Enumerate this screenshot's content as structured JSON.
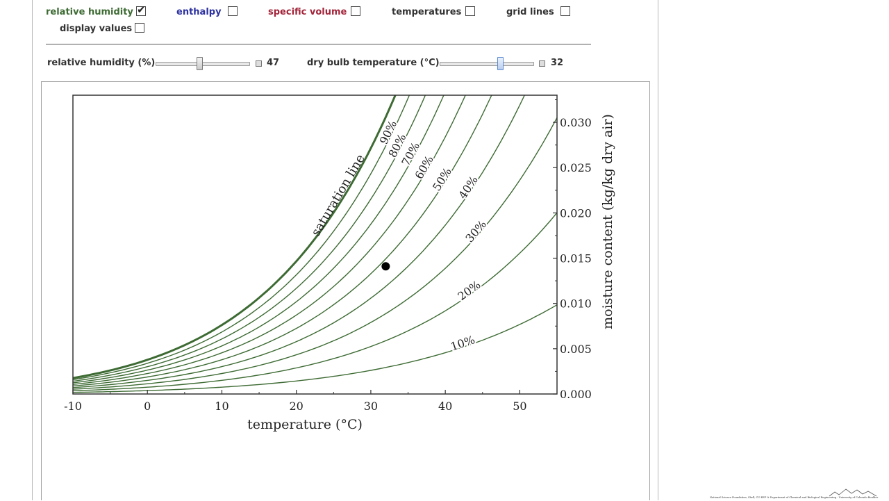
{
  "controls": {
    "relative_humidity": {
      "label": "relative humidity",
      "checked": true,
      "color": "#3d6b33"
    },
    "enthalpy": {
      "label": "enthalpy",
      "checked": false,
      "color": "#2b2fa0"
    },
    "specific_volume": {
      "label": "specific volume",
      "checked": false,
      "color": "#a3243a"
    },
    "temperatures": {
      "label": "temperatures",
      "checked": false,
      "color": "#333333"
    },
    "grid_lines": {
      "label": "grid lines",
      "checked": false,
      "color": "#333333"
    },
    "display_values": {
      "label": "display values",
      "checked": false,
      "color": "#333333"
    }
  },
  "sliders": {
    "rh": {
      "label": "relative humidity (%)",
      "value": "47",
      "min": 0,
      "max": 100,
      "current": 47
    },
    "dbt": {
      "label": "dry bulb temperature (°C)",
      "value": "32",
      "min": -10,
      "max": 55,
      "current": 32
    }
  },
  "chart_data": {
    "type": "line",
    "xlabel": "temperature (°C)",
    "ylabel": "moisture content (kg/kg dry air)",
    "xlim": [
      -10,
      55
    ],
    "ylim": [
      0,
      0.033
    ],
    "x_ticks": [
      "-10",
      "0",
      "10",
      "20",
      "30",
      "40",
      "50"
    ],
    "y_ticks": [
      "0.000",
      "0.005",
      "0.010",
      "0.015",
      "0.020",
      "0.025",
      "0.030"
    ],
    "line_color": "#3d6b33",
    "saturation_label": "saturation line",
    "rh_levels": [
      10,
      20,
      30,
      40,
      50,
      60,
      70,
      80,
      90,
      100
    ],
    "rh_labels": [
      "10%",
      "20%",
      "30%",
      "40%",
      "50%",
      "60%",
      "70%",
      "80%",
      "90%"
    ],
    "state_point": {
      "temperature": 32,
      "rh": 47,
      "moisture": 0.0141
    }
  },
  "credit_text": "National Science Foundation, Shell, CU-EEF & Department of Chemical and Biological Engineering · University of Colorado Boulder"
}
